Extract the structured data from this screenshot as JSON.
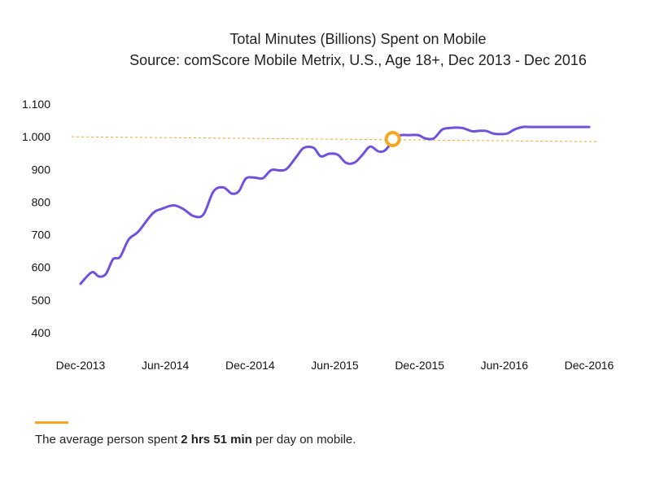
{
  "chart_data": {
    "type": "line",
    "title": "Total Minutes (Billions) Spent on Mobile",
    "subtitle": "Source: comScore Mobile Metrix, U.S., Age 18+, Dec 2013 - Dec 2016",
    "xlabel": "",
    "ylabel": "",
    "ylim": [
      350,
      1130
    ],
    "y_ticks": [
      400,
      500,
      600,
      700,
      800,
      900,
      1000,
      1100
    ],
    "y_tick_labels": [
      "400",
      "500",
      "600",
      "700",
      "800",
      "900",
      "1.000",
      "1.100"
    ],
    "x_tick_labels": [
      "Dec-2013",
      "Jun-2014",
      "Dec-2014",
      "Jun-2015",
      "Dec-2015",
      "Jun-2016",
      "Dec-2016"
    ],
    "x_tick_months": [
      0,
      6,
      12,
      18,
      24,
      30,
      36
    ],
    "grid": false,
    "series": [
      {
        "color": "#6f52d9",
        "x": [
          0,
          0.8,
          1.3,
          1.8,
          2.3,
          2.8,
          3.4,
          4.1,
          5.1,
          5.8,
          6.6,
          7.3,
          8.0,
          8.7,
          9.4,
          10.1,
          10.7,
          11.2,
          11.7,
          12.3,
          12.9,
          13.5,
          14.1,
          14.6,
          15.3,
          15.8,
          16.5,
          17.0,
          17.6,
          18.2,
          18.8,
          19.4,
          20.0,
          20.5,
          21.1,
          21.6,
          22.2,
          22.7,
          23.2,
          23.9,
          24.4,
          25.0,
          25.6,
          26.2,
          27.0,
          27.7,
          28.2,
          28.7,
          29.2,
          29.7,
          30.2,
          30.7,
          31.3,
          31.8,
          32.4,
          33.0,
          33.7,
          34.3,
          34.7,
          35.2,
          35.6,
          36.0
        ],
        "values": [
          550,
          585,
          572,
          580,
          625,
          632,
          685,
          710,
          765,
          780,
          790,
          778,
          757,
          762,
          832,
          845,
          826,
          833,
          872,
          875,
          873,
          898,
          897,
          902,
          940,
          966,
          966,
          940,
          948,
          945,
          920,
          921,
          947,
          970,
          955,
          960,
          995,
          1005,
          1005,
          1005,
          995,
          995,
          1022,
          1027,
          1027,
          1017,
          1018,
          1018,
          1010,
          1008,
          1010,
          1022,
          1030,
          1030,
          1030,
          1030,
          1030,
          1030,
          1030,
          1030,
          1030,
          1030
        ]
      }
    ],
    "reference_line": {
      "color": "#f5a623",
      "value": 1000
    },
    "highlight_marker": {
      "x": 22.1,
      "value": 993,
      "color": "#f5a623"
    }
  },
  "note": {
    "prefix": "The average person spent ",
    "bold": "2 hrs 51 min",
    "suffix": " per day on mobile."
  }
}
